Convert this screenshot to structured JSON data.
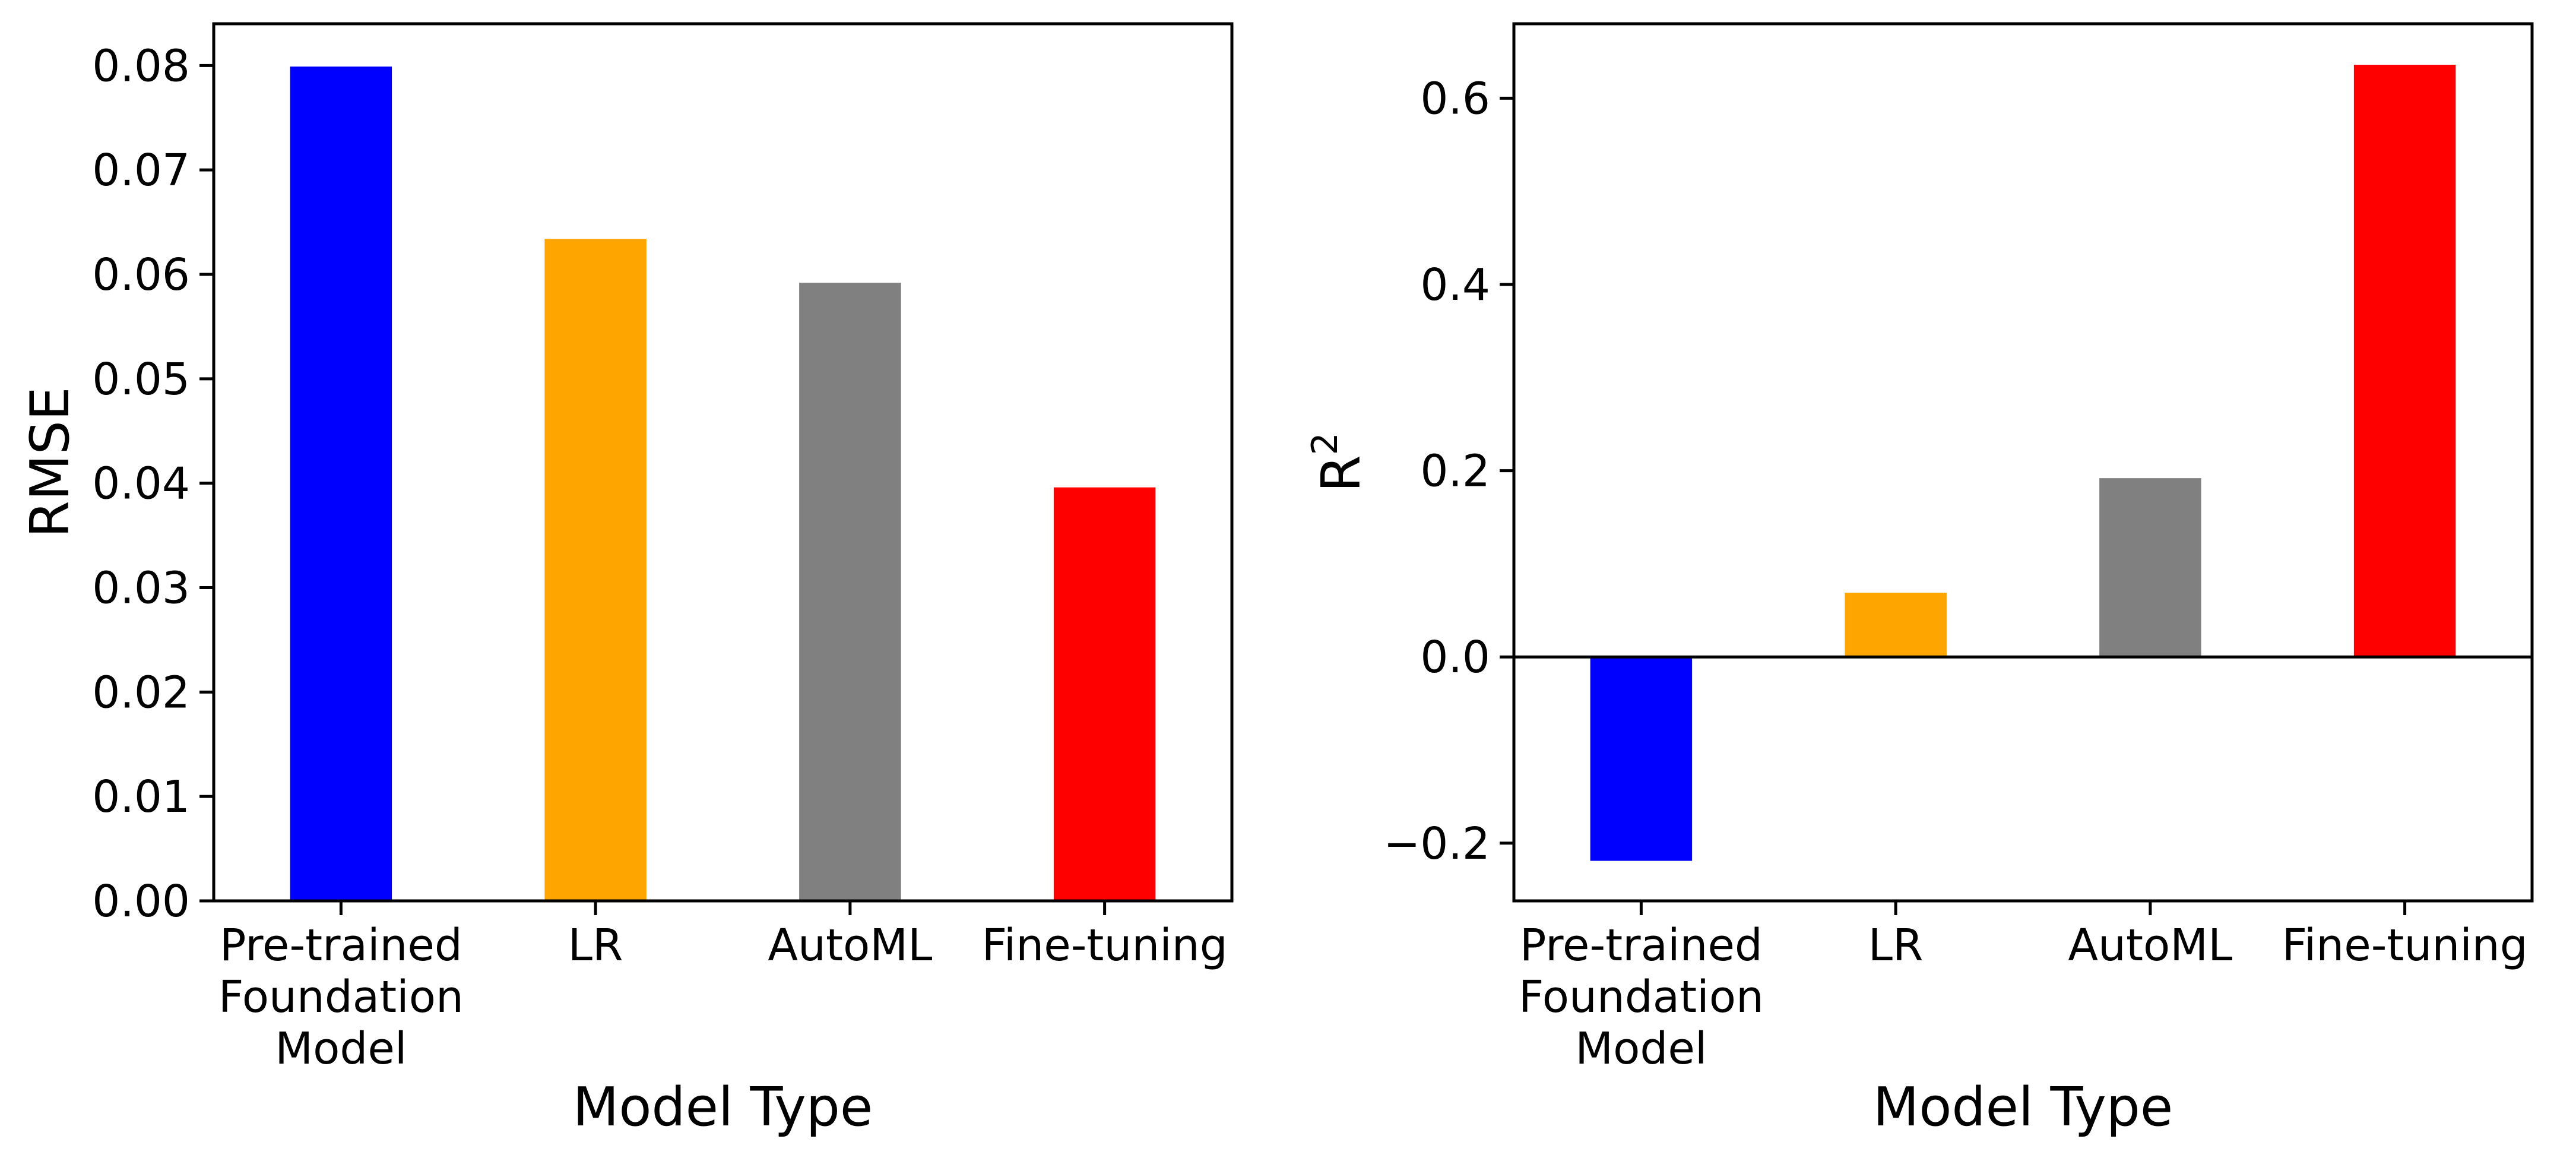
{
  "chart_data": [
    {
      "type": "bar",
      "categories": [
        [
          "Pre-trained",
          "Foundation",
          "Model"
        ],
        [
          "LR"
        ],
        [
          "AutoML"
        ],
        [
          "Fine-tuning"
        ]
      ],
      "values": [
        0.0799,
        0.0634,
        0.0592,
        0.0396
      ],
      "colors": [
        "#0000ff",
        "#ffa500",
        "#808080",
        "#ff0000"
      ],
      "xlabel": "Model Type",
      "ylabel": "RMSE",
      "ylim": [
        0,
        0.084
      ],
      "yticks": [
        0.0,
        0.01,
        0.02,
        0.03,
        0.04,
        0.05,
        0.06,
        0.07,
        0.08
      ],
      "ytick_labels": [
        "0.00",
        "0.01",
        "0.02",
        "0.03",
        "0.04",
        "0.05",
        "0.06",
        "0.07",
        "0.08"
      ],
      "grid": false
    },
    {
      "type": "bar",
      "categories": [
        [
          "Pre-trained",
          "Foundation",
          "Model"
        ],
        [
          "LR"
        ],
        [
          "AutoML"
        ],
        [
          "Fine-tuning"
        ]
      ],
      "values": [
        -0.219,
        0.069,
        0.192,
        0.636
      ],
      "colors": [
        "#0000ff",
        "#ffa500",
        "#808080",
        "#ff0000"
      ],
      "xlabel": "Model Type",
      "ylabel": "R",
      "ylabel_superscript": "2",
      "ylim": [
        -0.262,
        0.68
      ],
      "yticks": [
        -0.2,
        0.0,
        0.2,
        0.4,
        0.6
      ],
      "ytick_labels": [
        "−0.2",
        "0.0",
        "0.2",
        "0.4",
        "0.6"
      ],
      "zero_line": true,
      "grid": false
    }
  ]
}
